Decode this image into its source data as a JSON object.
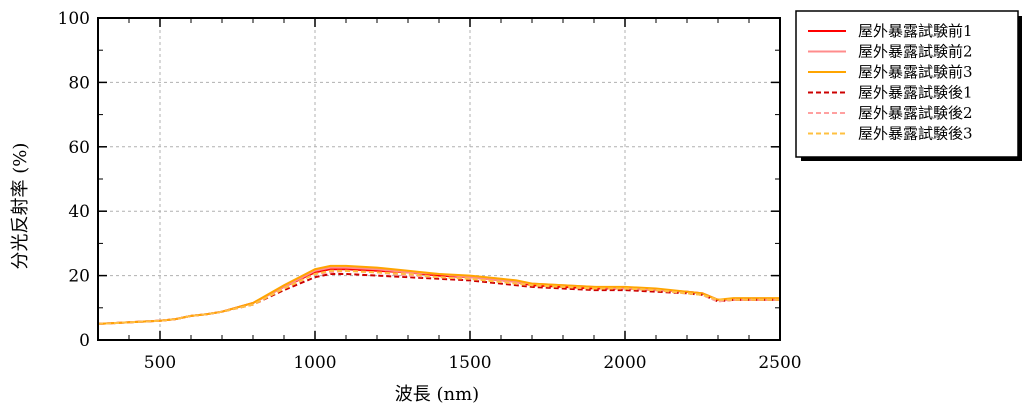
{
  "chart_data": {
    "type": "line",
    "xlabel": "波長 (nm)",
    "ylabel": "分光反射率 (%)",
    "xlim": [
      300,
      2500
    ],
    "ylim": [
      0,
      100
    ],
    "x_ticks": [
      500,
      1000,
      1500,
      2000,
      2500
    ],
    "y_ticks": [
      0,
      20,
      40,
      60,
      80,
      100
    ],
    "grid": true,
    "legend_position": "outside-top-right",
    "x": [
      300,
      400,
      500,
      550,
      600,
      650,
      700,
      800,
      900,
      1000,
      1050,
      1100,
      1200,
      1300,
      1400,
      1500,
      1600,
      1650,
      1700,
      1800,
      1900,
      2000,
      2100,
      2200,
      2250,
      2300,
      2350,
      2400,
      2500
    ],
    "series": [
      {
        "name": "屋外暴露試験前1",
        "color": "#ff0000",
        "dash": "solid",
        "values": [
          5.0,
          5.5,
          6.0,
          6.5,
          7.5,
          8.0,
          8.8,
          11.5,
          16.5,
          21.0,
          22.0,
          22.0,
          21.5,
          21.0,
          20.0,
          19.5,
          18.5,
          18.0,
          17.0,
          16.5,
          16.0,
          16.0,
          15.5,
          15.0,
          14.5,
          12.5,
          12.5,
          12.5,
          12.5
        ]
      },
      {
        "name": "屋外暴露試験前2",
        "color": "#ff8c8c",
        "dash": "solid",
        "values": [
          5.0,
          5.5,
          6.0,
          6.5,
          7.5,
          8.0,
          8.8,
          11.5,
          16.5,
          21.5,
          22.5,
          22.5,
          22.0,
          21.0,
          20.5,
          19.5,
          18.5,
          18.0,
          17.5,
          17.0,
          16.5,
          16.0,
          15.5,
          15.0,
          14.5,
          12.5,
          12.5,
          12.5,
          12.5
        ]
      },
      {
        "name": "屋外暴露試験前3",
        "color": "#ffa500",
        "dash": "solid",
        "values": [
          5.0,
          5.5,
          6.0,
          6.5,
          7.5,
          8.0,
          8.8,
          11.5,
          17.0,
          22.0,
          23.0,
          23.0,
          22.5,
          21.5,
          20.5,
          20.0,
          19.0,
          18.5,
          17.5,
          17.0,
          16.5,
          16.5,
          16.0,
          15.0,
          14.5,
          12.5,
          13.0,
          13.0,
          13.0
        ]
      },
      {
        "name": "屋外暴露試験後1",
        "color": "#cc0000",
        "dash": "dashed",
        "values": [
          5.0,
          5.5,
          6.0,
          6.5,
          7.5,
          8.0,
          8.8,
          11.0,
          15.5,
          19.5,
          20.5,
          20.5,
          20.0,
          19.5,
          19.0,
          18.5,
          17.5,
          17.0,
          16.5,
          16.0,
          15.5,
          15.5,
          15.0,
          14.5,
          14.0,
          12.0,
          12.5,
          12.5,
          12.5
        ]
      },
      {
        "name": "屋外暴露試験後2",
        "color": "#ffa0a0",
        "dash": "dashed",
        "values": [
          5.0,
          5.5,
          6.0,
          6.5,
          7.5,
          8.0,
          8.8,
          11.0,
          16.0,
          20.5,
          21.0,
          21.5,
          21.0,
          20.0,
          19.5,
          19.0,
          18.0,
          17.5,
          17.0,
          16.5,
          16.0,
          16.0,
          15.5,
          14.5,
          14.0,
          12.0,
          12.5,
          12.5,
          12.5
        ]
      },
      {
        "name": "屋外暴露試験後3",
        "color": "#ffc040",
        "dash": "dashed",
        "values": [
          5.0,
          5.5,
          6.0,
          6.5,
          7.5,
          8.0,
          8.8,
          11.0,
          16.0,
          20.5,
          21.5,
          21.5,
          21.0,
          20.5,
          19.5,
          19.0,
          18.0,
          17.5,
          17.0,
          16.5,
          16.0,
          16.0,
          15.5,
          14.5,
          14.0,
          12.5,
          12.5,
          12.5,
          12.5
        ]
      }
    ]
  }
}
